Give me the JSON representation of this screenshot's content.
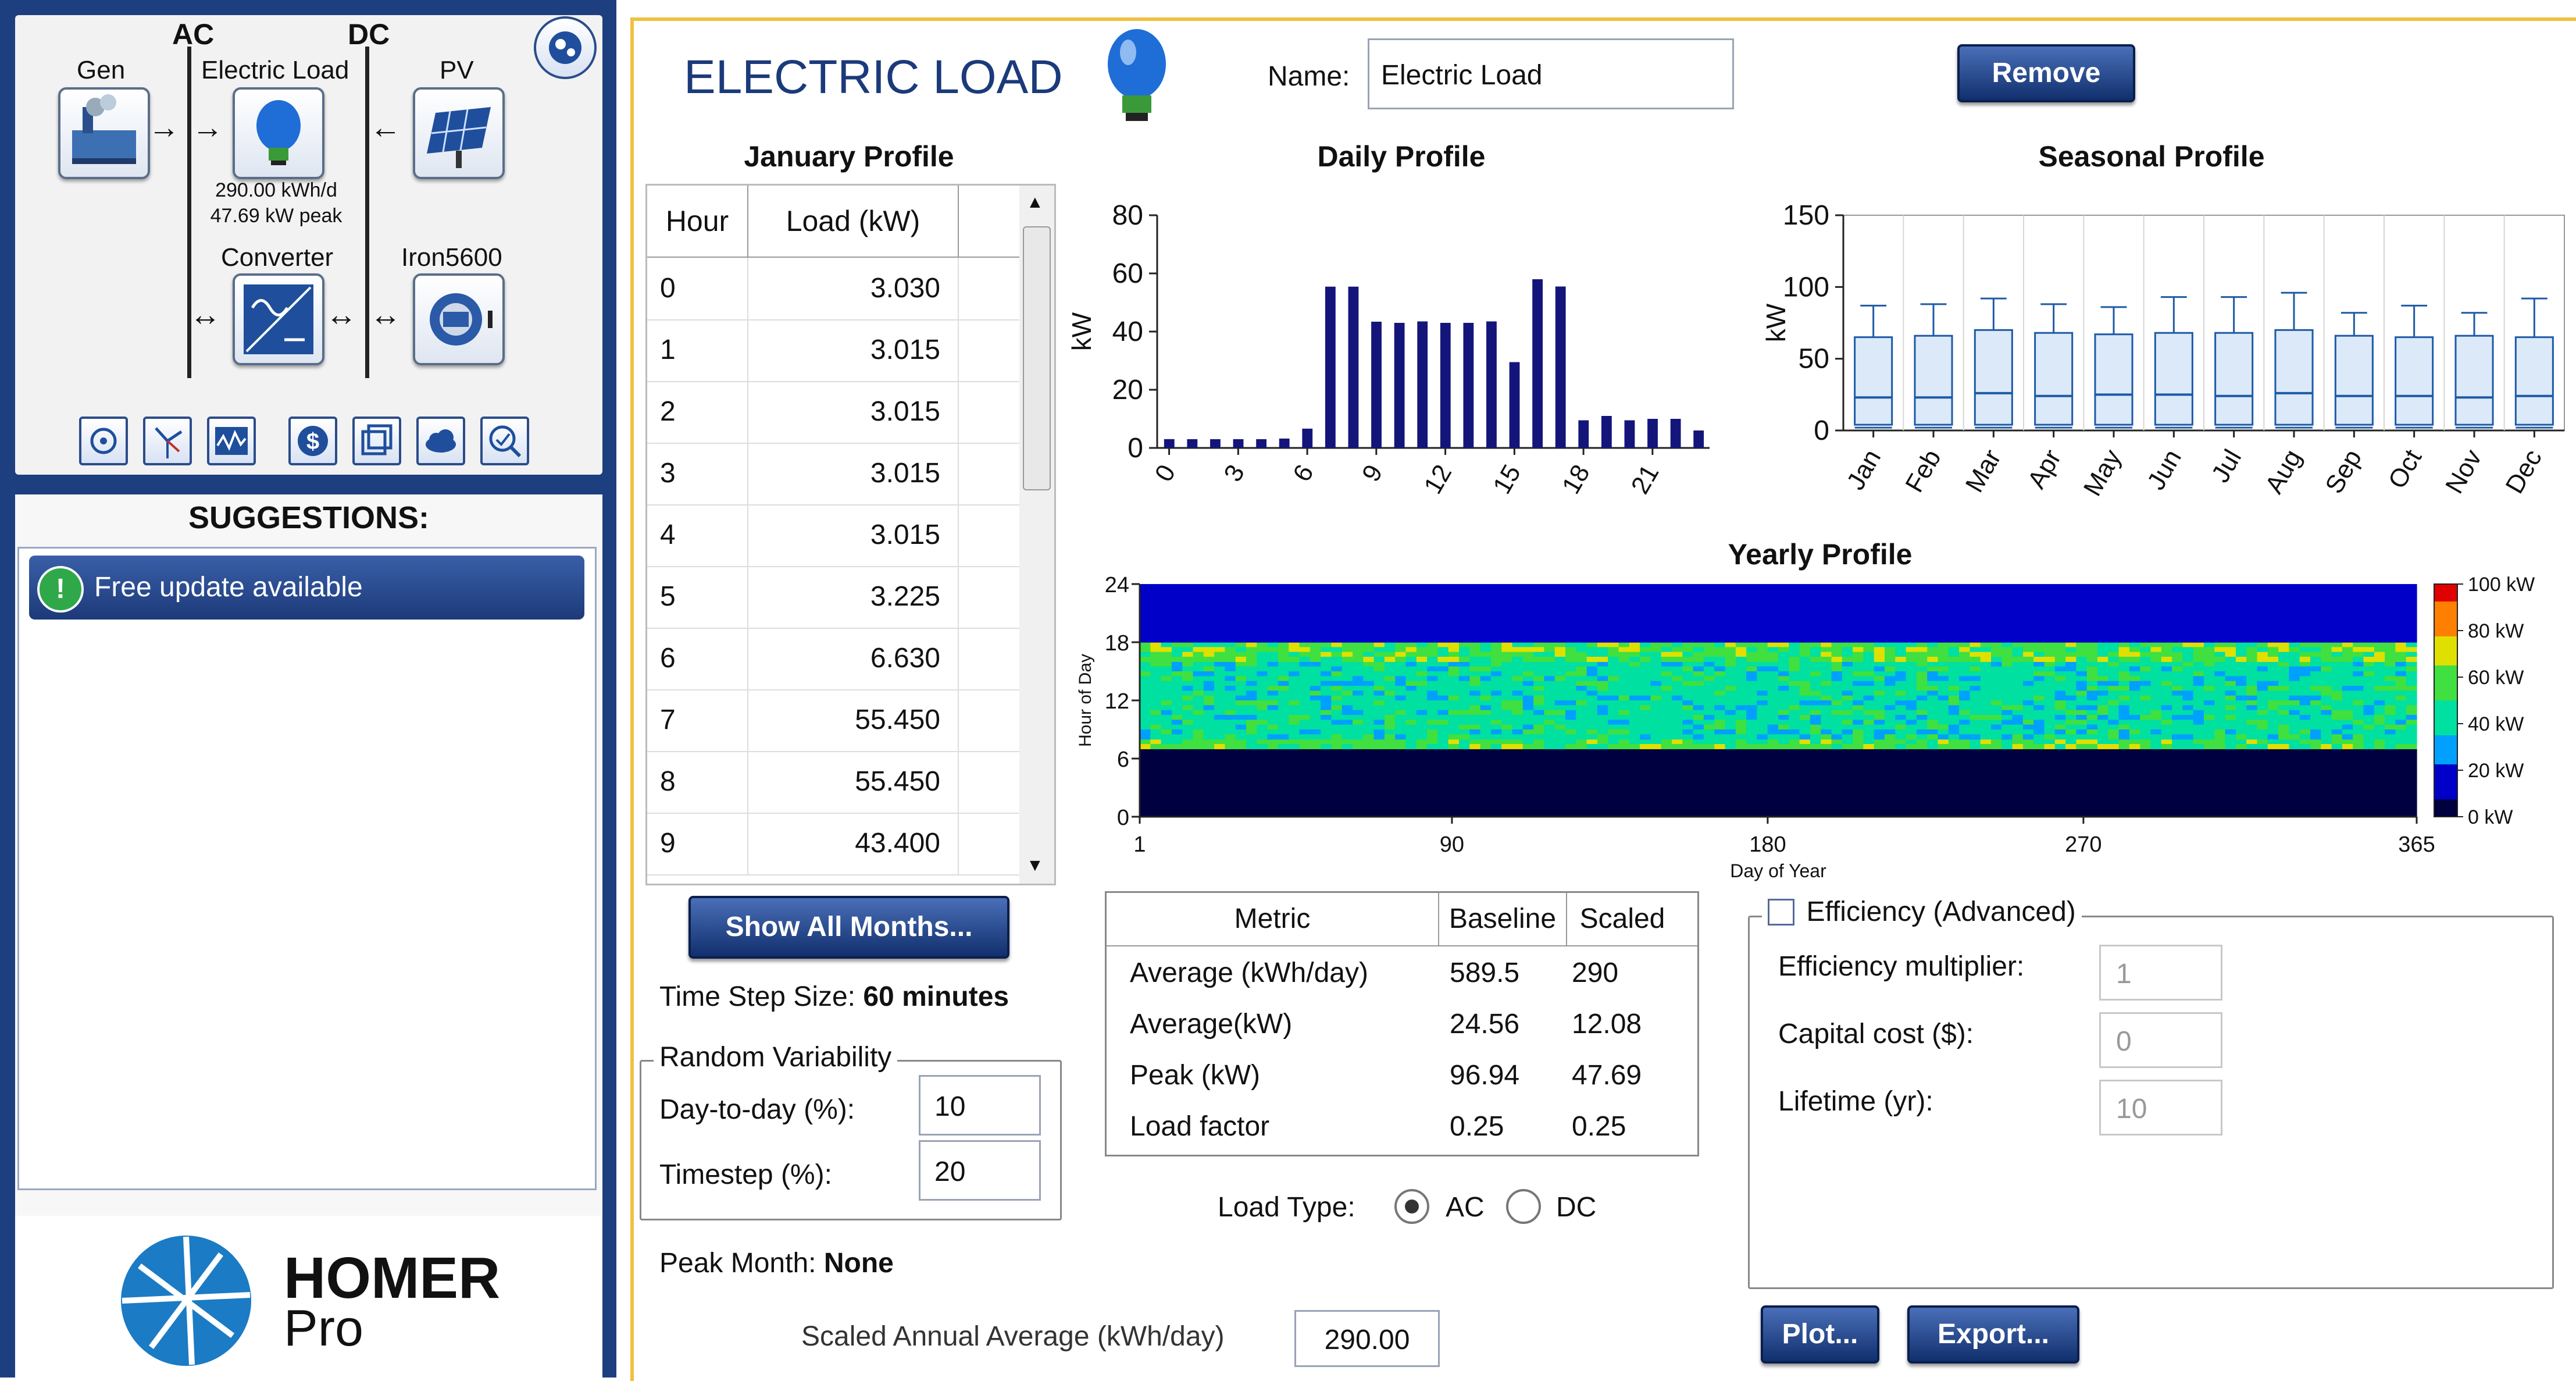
{
  "schematic": {
    "ac_label": "AC",
    "dc_label": "DC",
    "components": {
      "gen": "Gen",
      "electric_load": "Electric Load",
      "pv": "PV",
      "converter": "Converter",
      "storage": "Iron5600"
    },
    "load_stats": [
      "290.00 kWh/d",
      "47.69 kW peak"
    ],
    "toolbar_icons": [
      "target-icon",
      "wind-icon",
      "waveform-icon",
      "dollar-icon",
      "layers-icon",
      "cloud-icon",
      "optimize-icon"
    ]
  },
  "suggestions": {
    "title": "SUGGESTIONS:",
    "items": [
      {
        "label": "Free update available",
        "icon": "!"
      }
    ]
  },
  "brand": {
    "name": "HOMER",
    "product": "Pro",
    "color": "#1b7bc4"
  },
  "page": {
    "title": "ELECTRIC LOAD",
    "name_label": "Name:",
    "name_value": "Electric Load",
    "remove_button": "Remove"
  },
  "january_profile": {
    "title": "January Profile",
    "columns": [
      "Hour",
      "Load (kW)"
    ],
    "rows": [
      [
        "0",
        "3.030"
      ],
      [
        "1",
        "3.015"
      ],
      [
        "2",
        "3.015"
      ],
      [
        "3",
        "3.015"
      ],
      [
        "4",
        "3.015"
      ],
      [
        "5",
        "3.225"
      ],
      [
        "6",
        "6.630"
      ],
      [
        "7",
        "55.450"
      ],
      [
        "8",
        "55.450"
      ],
      [
        "9",
        "43.400"
      ]
    ]
  },
  "show_all_months_button": "Show All Months...",
  "time_step": {
    "label": "Time Step Size:",
    "value": "60 minutes"
  },
  "random_variability": {
    "title": "Random Variability",
    "day_to_day_label": "Day-to-day (%):",
    "day_to_day_value": "10",
    "timestep_label": "Timestep (%):",
    "timestep_value": "20"
  },
  "peak_month": {
    "label": "Peak Month:",
    "value": "None"
  },
  "scaled_annual": {
    "label": "Scaled Annual Average (kWh/day)",
    "value": "290.00"
  },
  "metrics": {
    "columns": [
      "Metric",
      "Baseline",
      "Scaled"
    ],
    "rows": [
      [
        "Average (kWh/day)",
        "589.5",
        "290"
      ],
      [
        "Average(kW)",
        "24.56",
        "12.08"
      ],
      [
        "Peak (kW)",
        "96.94",
        "47.69"
      ],
      [
        "Load factor",
        "0.25",
        "0.25"
      ]
    ]
  },
  "load_type": {
    "label": "Load Type:",
    "options": [
      "AC",
      "DC"
    ],
    "selected": "AC"
  },
  "efficiency": {
    "title": "Efficiency (Advanced)",
    "checked": false,
    "multiplier_label": "Efficiency multiplier:",
    "multiplier_value": "1",
    "capital_label": "Capital cost ($):",
    "capital_value": "0",
    "lifetime_label": "Lifetime (yr):",
    "lifetime_value": "10"
  },
  "buttons": {
    "plot": "Plot...",
    "export": "Export..."
  },
  "chart_data": [
    {
      "type": "bar",
      "title": "Daily Profile",
      "ylabel": "kW",
      "xlabel": "",
      "x": [
        0,
        1,
        2,
        3,
        4,
        5,
        6,
        7,
        8,
        9,
        10,
        11,
        12,
        13,
        14,
        15,
        16,
        17,
        18,
        19,
        20,
        21,
        22,
        23
      ],
      "x_tick_labels": [
        "0",
        "3",
        "6",
        "9",
        "12",
        "15",
        "18",
        "21"
      ],
      "values": [
        3.03,
        3.015,
        3.015,
        3.015,
        3.015,
        3.225,
        6.63,
        55.45,
        55.45,
        43.4,
        43,
        43.5,
        43,
        43,
        43.5,
        29.5,
        58,
        55.5,
        9.5,
        11,
        9.5,
        10,
        10,
        6
      ],
      "ylim": [
        0,
        80
      ],
      "y_ticks": [
        0,
        20,
        40,
        60,
        80
      ],
      "color": "#14157a"
    },
    {
      "type": "box",
      "title": "Seasonal Profile",
      "ylabel": "kW",
      "categories": [
        "Jan",
        "Feb",
        "Mar",
        "Apr",
        "May",
        "Jun",
        "Jul",
        "Aug",
        "Sep",
        "Oct",
        "Nov",
        "Dec"
      ],
      "whisker_high": [
        87,
        88,
        92,
        88,
        86,
        93,
        93,
        96,
        82,
        87,
        82,
        92
      ],
      "q3": [
        65,
        66,
        70,
        68,
        67,
        68,
        68,
        70,
        66,
        65,
        66,
        65
      ],
      "median": [
        23,
        23,
        26,
        24,
        25,
        25,
        24,
        26,
        24,
        24,
        23,
        24
      ],
      "q1": [
        4,
        4,
        4,
        4,
        4,
        4,
        4,
        4,
        4,
        4,
        4,
        4
      ],
      "whisker_low": [
        2,
        2,
        2,
        2,
        2,
        2,
        2,
        2,
        2,
        2,
        2,
        2
      ],
      "ylim": [
        0,
        150
      ],
      "y_ticks": [
        0,
        50,
        100,
        150
      ],
      "color": "#1e5aa6"
    },
    {
      "type": "heatmap",
      "title": "Yearly Profile",
      "xlabel": "Day of Year",
      "ylabel": "Hour of Day",
      "x_ticks": [
        1,
        90,
        180,
        270,
        365
      ],
      "y_ticks": [
        0,
        6,
        12,
        18,
        24
      ],
      "colorbar_labels": [
        "100 kW",
        "80 kW",
        "60 kW",
        "40 kW",
        "20 kW",
        "0 kW"
      ],
      "colormap": [
        "#000040",
        "#0000c8",
        "#00a0ff",
        "#00e0a0",
        "#40e040",
        "#e0e000",
        "#ff8000",
        "#e00000"
      ],
      "hourly_bands_kw": [
        {
          "hours": [
            0,
            7
          ],
          "level_kw": 3
        },
        {
          "hours": [
            7,
            8
          ],
          "level_kw": 55
        },
        {
          "hours": [
            8,
            16
          ],
          "level_kw": 43
        },
        {
          "hours": [
            16,
            18
          ],
          "level_kw": 57
        },
        {
          "hours": [
            18,
            24
          ],
          "level_kw": 10
        }
      ]
    }
  ]
}
